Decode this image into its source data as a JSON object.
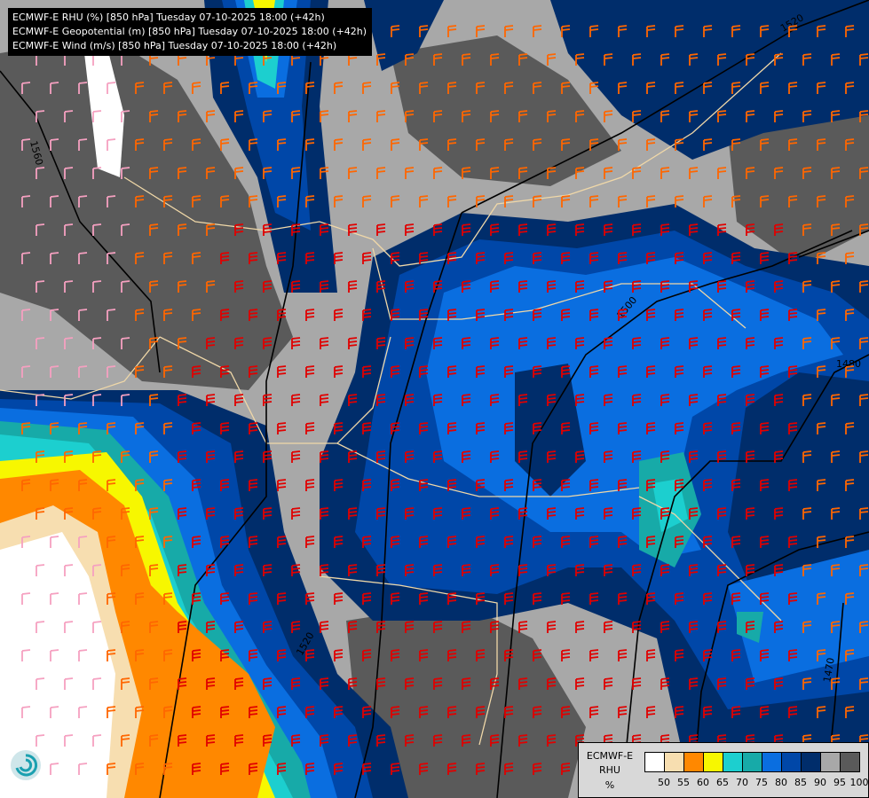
{
  "titles": [
    "ECMWF-E RHU (%) [850 hPa] Tuesday 07-10-2025 18:00 (+42h)",
    "ECMWF-E Geopotential (m) [850 hPa] Tuesday 07-10-2025 18:00 (+42h)",
    "ECMWF-E Wind (m/s) [850 hPa] Tuesday 07-10-2025 18:00 (+42h)"
  ],
  "legend": {
    "model": "ECMWF-E",
    "variable": "RHU",
    "unit": "%",
    "colors": [
      "#ffffff",
      "#f7deb0",
      "#ff8800",
      "#f7f700",
      "#1ccfcf",
      "#17aaa8",
      "#0a6ee0",
      "#0047a8",
      "#002d6b",
      "#a8a8a8",
      "#5a5a5a"
    ],
    "ticks": [
      "50",
      "55",
      "60",
      "65",
      "70",
      "75",
      "80",
      "85",
      "90",
      "95",
      "100"
    ]
  },
  "contours": {
    "labels": [
      "1560",
      "1520",
      "1500",
      "1480",
      "1520",
      "1470"
    ]
  },
  "wind_barb_colors": {
    "light": "#f5a0c0",
    "moderate": "#ff6600",
    "strong": "#e00000"
  },
  "logo": "ecmwf-logo"
}
